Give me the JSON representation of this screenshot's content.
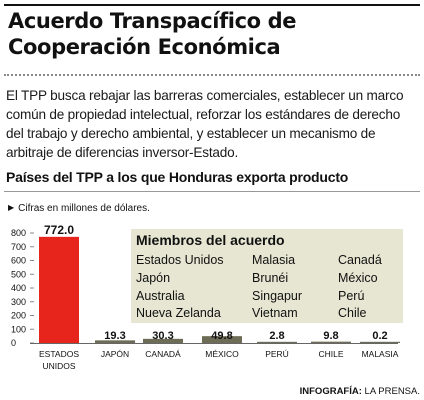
{
  "title": "Acuerdo Transpacífico de Cooperación Económica",
  "intro": "El TPP busca rebajar las barreras comerciales, establecer un marco común de propiedad intelectual, reforzar los estándares de derecho del trabajo y derecho ambiental, y establecer un mecanismo de arbitraje de diferencias inversor-Estado.",
  "subtitle": "Países del TPP a los que Honduras exporta producto",
  "note": "Cifras en millones de dólares.",
  "legend": {
    "title": "Miembros del acuerdo",
    "members": [
      "Estados Unidos",
      "Malasia",
      "Canadá",
      "Japón",
      "Brunéi",
      "México",
      "Australia",
      "Singapur",
      "Perú",
      "Nueva Zelanda",
      "Vietnam",
      "Chile"
    ]
  },
  "credit": {
    "label": "INFOGRAFÍA:",
    "source": "LA PRENSA."
  },
  "colors": {
    "highlight": "#e8251c",
    "bar": "#6d6d57",
    "legend_bg": "#e6e6d2"
  },
  "chart_data": {
    "type": "bar",
    "categories": [
      "ESTADOS UNIDOS",
      "JAPÓN",
      "CANADÁ",
      "MÉXICO",
      "PERÚ",
      "CHILE",
      "MALASIA"
    ],
    "values": [
      772.0,
      19.3,
      30.3,
      49.8,
      2.8,
      9.8,
      0.2
    ],
    "value_labels": [
      "772.0",
      "19.3",
      "30.3",
      "49.8",
      "2.8",
      "9.8",
      "0.2"
    ],
    "yticks": [
      0,
      100,
      200,
      300,
      400,
      500,
      600,
      700,
      800
    ],
    "ylim": [
      0,
      800
    ],
    "highlight_index": 0,
    "grid": false
  }
}
